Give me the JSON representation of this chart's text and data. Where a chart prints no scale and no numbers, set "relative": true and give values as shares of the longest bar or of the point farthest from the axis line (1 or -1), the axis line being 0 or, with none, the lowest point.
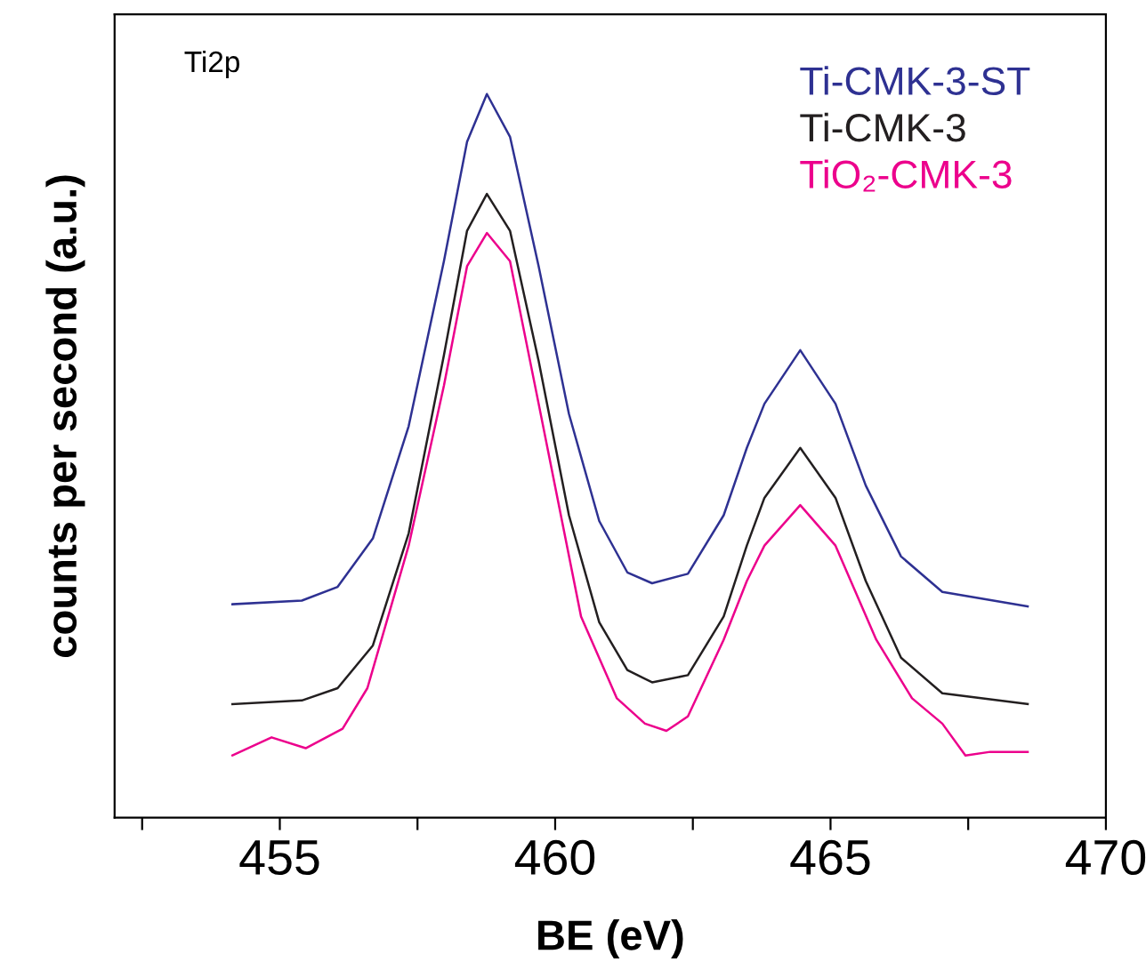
{
  "chart_data": {
    "type": "line",
    "relative": true,
    "xlabel": "BE (eV)",
    "ylabel": "counts per second (a.u.)",
    "annotations": [
      "Ti2p"
    ],
    "legend": "top right",
    "grid": false,
    "marker": "none",
    "line_style": "solid",
    "xlim": [
      452,
      470
    ],
    "xticks": [
      {
        "value": 452.5,
        "label": null
      },
      455,
      {
        "value": 457.5,
        "label": null
      },
      460,
      {
        "value": 462.5,
        "label": null
      },
      465,
      {
        "value": 467.5,
        "label": null
      },
      470
    ],
    "series": [
      {
        "name": "Ti-CMK-3-ST",
        "color": "#2e3192",
        "x": [
          454.14,
          455.4,
          456.05,
          456.69,
          457.34,
          457.98,
          458.4,
          458.76,
          459.18,
          459.7,
          460.25,
          460.8,
          461.31,
          461.76,
          462.41,
          463.06,
          463.48,
          463.8,
          464.45,
          465.09,
          465.64,
          466.28,
          467.03,
          468.58
        ],
        "values": [
          0.295,
          0.3,
          0.319,
          0.386,
          0.541,
          0.769,
          0.934,
          1,
          0.941,
          0.762,
          0.558,
          0.41,
          0.339,
          0.324,
          0.337,
          0.418,
          0.511,
          0.572,
          0.646,
          0.572,
          0.459,
          0.361,
          0.312,
          0.292
        ]
      },
      {
        "name": "Ti-CMK-3",
        "color": "#231f20",
        "x": [
          454.14,
          455.4,
          456.05,
          456.69,
          457.34,
          457.98,
          458.4,
          458.76,
          459.18,
          459.7,
          460.25,
          460.8,
          461.31,
          461.76,
          462.41,
          463.06,
          463.48,
          463.8,
          464.45,
          465.09,
          465.64,
          466.28,
          467.03,
          468.58
        ],
        "values": [
          0.157,
          0.162,
          0.179,
          0.238,
          0.393,
          0.639,
          0.811,
          0.862,
          0.811,
          0.631,
          0.418,
          0.27,
          0.204,
          0.187,
          0.197,
          0.278,
          0.376,
          0.442,
          0.511,
          0.442,
          0.327,
          0.221,
          0.172,
          0.157
        ]
      },
      {
        "name": "TiO₂-CMK-3",
        "color": "#ec008c",
        "x": [
          454.14,
          454.85,
          455.47,
          456.14,
          456.59,
          457.34,
          457.98,
          458.4,
          458.76,
          459.18,
          459.7,
          460.47,
          461.12,
          461.63,
          462.02,
          462.41,
          463.06,
          463.48,
          463.8,
          464.45,
          465.09,
          465.83,
          466.48,
          467.03,
          467.45,
          467.9,
          468.58
        ],
        "values": [
          0.086,
          0.111,
          0.096,
          0.123,
          0.179,
          0.376,
          0.597,
          0.762,
          0.808,
          0.769,
          0.572,
          0.278,
          0.165,
          0.13,
          0.12,
          0.14,
          0.246,
          0.327,
          0.376,
          0.432,
          0.376,
          0.246,
          0.165,
          0.13,
          0.086,
          0.091,
          0.091
        ]
      }
    ]
  }
}
